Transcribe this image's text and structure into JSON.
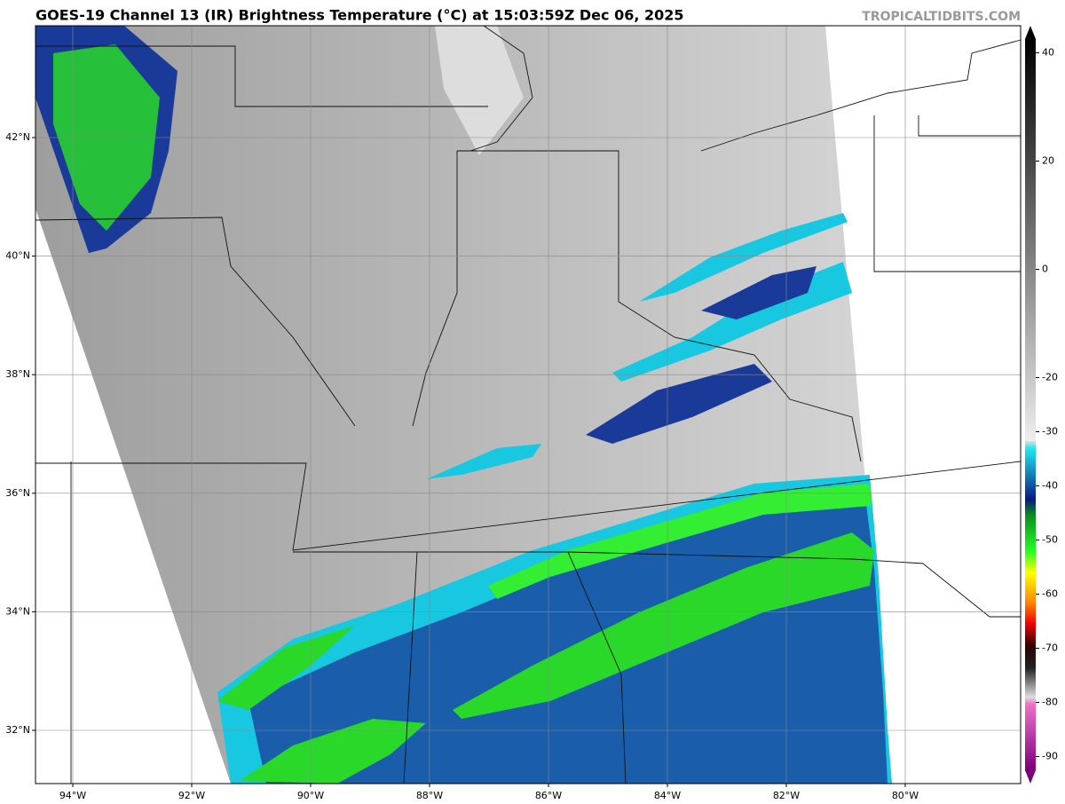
{
  "header": {
    "title": "GOES-19 Channel 13 (IR) Brightness Temperature (°C) at 15:03:59Z Dec 06, 2025",
    "credit": "TROPICALTIDBITS.COM"
  },
  "map": {
    "lat_ticks": [
      {
        "value": 42,
        "label": "42°N"
      },
      {
        "value": 40,
        "label": "40°N"
      },
      {
        "value": 38,
        "label": "38°N"
      },
      {
        "value": 36,
        "label": "36°N"
      },
      {
        "value": 34,
        "label": "34°N"
      },
      {
        "value": 32,
        "label": "32°N"
      }
    ],
    "lon_ticks": [
      {
        "value": -94,
        "label": "94°W"
      },
      {
        "value": -92,
        "label": "92°W"
      },
      {
        "value": -90,
        "label": "90°W"
      },
      {
        "value": -88,
        "label": "88°W"
      },
      {
        "value": -86,
        "label": "86°W"
      },
      {
        "value": -84,
        "label": "84°W"
      },
      {
        "value": -82,
        "label": "82°W"
      },
      {
        "value": -80,
        "label": "80°W"
      }
    ]
  },
  "colorbar": {
    "lim": [
      -95,
      45
    ],
    "ticks": [
      40,
      20,
      0,
      -20,
      -30,
      -40,
      -50,
      -60,
      -70,
      -80,
      -90
    ]
  }
}
